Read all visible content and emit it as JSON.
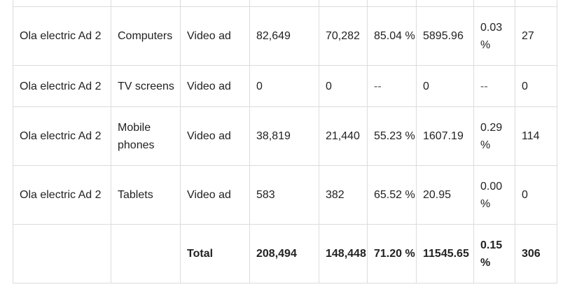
{
  "table": {
    "rows": [
      {
        "name": "Ola electric Ad 2",
        "device": "Computers",
        "type": "Video ad",
        "impressions": "82,649",
        "views": "70,282",
        "view_rate": "85.04 %",
        "cost": "5895.96",
        "ctr": "0.03 %",
        "clicks": "27"
      },
      {
        "name": "Ola electric Ad 2",
        "device": "TV screens",
        "type": "Video ad",
        "impressions": "0",
        "views": "0",
        "view_rate": "--",
        "cost": "0",
        "ctr": "--",
        "clicks": "0"
      },
      {
        "name": "Ola electric Ad 2",
        "device": "Mobile phones",
        "type": "Video ad",
        "impressions": "38,819",
        "views": "21,440",
        "view_rate": "55.23 %",
        "cost": "1607.19",
        "ctr": "0.29 %",
        "clicks": "114"
      },
      {
        "name": "Ola electric Ad 2",
        "device": "Tablets",
        "type": "Video ad",
        "impressions": "583",
        "views": "382",
        "view_rate": "65.52 %",
        "cost": "20.95",
        "ctr": "0.00 %",
        "clicks": "0"
      }
    ],
    "total": {
      "label": "Total",
      "impressions": "208,494",
      "views": "148,448",
      "view_rate": "71.20 %",
      "cost": "11545.65",
      "ctr": "0.15 %",
      "clicks": "306"
    }
  }
}
